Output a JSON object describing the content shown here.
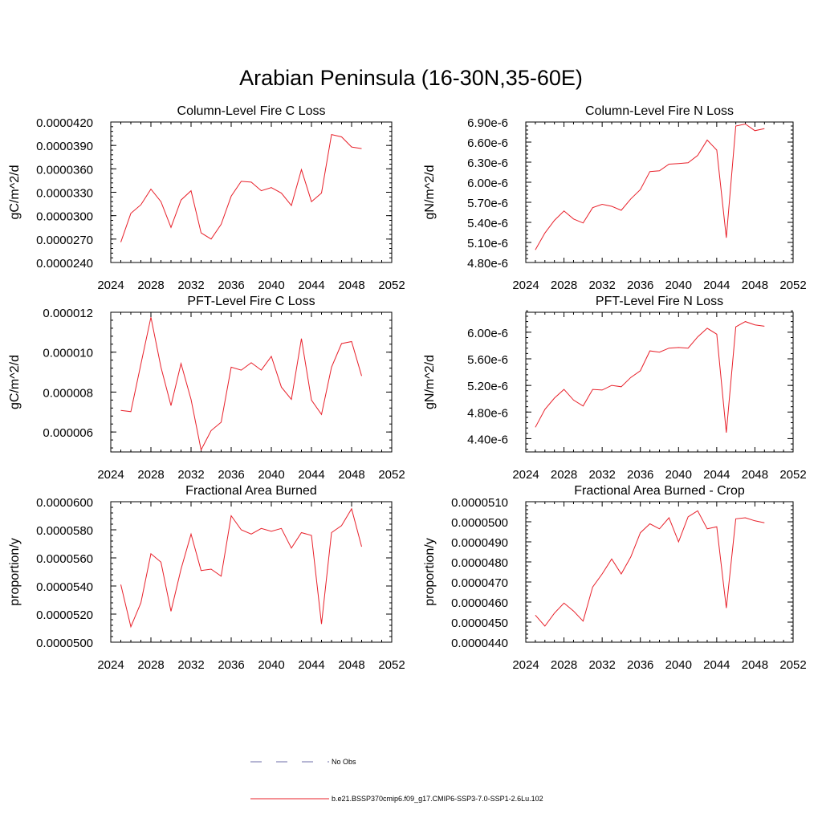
{
  "figure": {
    "title": "Arabian Peninsula (16-30N,35-60E)"
  },
  "legend": {
    "items": [
      {
        "label": "No Obs",
        "color": "#6e6ea8",
        "style": "dashed"
      },
      {
        "label": "b.e21.BSSP370cmip6.f09_g17.CMIP6-SSP3-7.0-SSP1-2.6Lu.102",
        "color": "#e8202a",
        "style": "solid"
      }
    ]
  },
  "chart_data": [
    {
      "type": "line",
      "title": "Column-Level Fire C Loss",
      "ylabel": "gC/m^2/d",
      "xlim": [
        2024,
        2052
      ],
      "xticks": [
        2024,
        2028,
        2032,
        2036,
        2040,
        2044,
        2048,
        2052
      ],
      "ylim": [
        2.4e-05,
        4.2e-05
      ],
      "yticks": [
        2.4e-05,
        2.7e-05,
        3e-05,
        3.3e-05,
        3.6e-05,
        3.9e-05,
        4.2e-05
      ],
      "ytick_labels": [
        "0.0000240",
        "0.0000270",
        "0.0000300",
        "0.0000330",
        "0.0000360",
        "0.0000390",
        "0.0000420"
      ],
      "x": [
        2025,
        2026,
        2027,
        2028,
        2029,
        2030,
        2031,
        2032,
        2033,
        2034,
        2035,
        2036,
        2037,
        2038,
        2039,
        2040,
        2041,
        2042,
        2043,
        2044,
        2045,
        2046,
        2047,
        2048,
        2049
      ],
      "series": [
        {
          "color": "#e8202a",
          "values": [
            2.66e-05,
            3.03e-05,
            3.14e-05,
            3.34e-05,
            3.18e-05,
            2.85e-05,
            3.2e-05,
            3.32e-05,
            2.78e-05,
            2.7e-05,
            2.89e-05,
            3.25e-05,
            3.44e-05,
            3.43e-05,
            3.32e-05,
            3.36e-05,
            3.29e-05,
            3.13e-05,
            3.59e-05,
            3.18e-05,
            3.29e-05,
            4.04e-05,
            4.01e-05,
            3.88e-05,
            3.86e-05
          ]
        }
      ]
    },
    {
      "type": "line",
      "title": "Column-Level Fire N Loss",
      "ylabel": "gN/m^2/d",
      "xlim": [
        2024,
        2052
      ],
      "xticks": [
        2024,
        2028,
        2032,
        2036,
        2040,
        2044,
        2048,
        2052
      ],
      "ylim": [
        4.8e-06,
        6.9e-06
      ],
      "yticks": [
        4.8e-06,
        5.1e-06,
        5.4e-06,
        5.7e-06,
        6e-06,
        6.3e-06,
        6.6e-06,
        6.9e-06
      ],
      "ytick_labels": [
        "4.80e-6",
        "5.10e-6",
        "5.40e-6",
        "5.70e-6",
        "6.00e-6",
        "6.30e-6",
        "6.60e-6",
        "6.90e-6"
      ],
      "x": [
        2025,
        2026,
        2027,
        2028,
        2029,
        2030,
        2031,
        2032,
        2033,
        2034,
        2035,
        2036,
        2037,
        2038,
        2039,
        2040,
        2041,
        2042,
        2043,
        2044,
        2045,
        2046,
        2047,
        2048,
        2049
      ],
      "series": [
        {
          "color": "#e8202a",
          "values": [
            4.99e-06,
            5.24e-06,
            5.43e-06,
            5.57e-06,
            5.45e-06,
            5.39e-06,
            5.62e-06,
            5.67e-06,
            5.64e-06,
            5.58e-06,
            5.75e-06,
            5.89e-06,
            6.16e-06,
            6.17e-06,
            6.27e-06,
            6.28e-06,
            6.29e-06,
            6.4e-06,
            6.63e-06,
            6.48e-06,
            5.17e-06,
            6.84e-06,
            6.87e-06,
            6.77e-06,
            6.8e-06
          ]
        }
      ]
    },
    {
      "type": "line",
      "title": "PFT-Level Fire C Loss",
      "ylabel": "gC/m^2/d",
      "xlim": [
        2024,
        2052
      ],
      "xticks": [
        2024,
        2028,
        2032,
        2036,
        2040,
        2044,
        2048,
        2052
      ],
      "ylim": [
        5e-06,
        1.2e-05
      ],
      "yticks": [
        6e-06,
        8e-06,
        1e-05,
        1.2e-05
      ],
      "ytick_labels": [
        "0.000006",
        "0.000008",
        "0.000010",
        "0.000012"
      ],
      "x": [
        2025,
        2026,
        2027,
        2028,
        2029,
        2030,
        2031,
        2032,
        2033,
        2034,
        2035,
        2036,
        2037,
        2038,
        2039,
        2040,
        2041,
        2042,
        2043,
        2044,
        2045,
        2046,
        2047,
        2048,
        2049
      ],
      "series": [
        {
          "color": "#e8202a",
          "values": [
            7.08e-06,
            7.02e-06,
            9.4e-06,
            1.175e-05,
            9.25e-06,
            7.32e-06,
            9.43e-06,
            7.63e-06,
            5.1e-06,
            6.07e-06,
            6.49e-06,
            9.25e-06,
            9.1e-06,
            9.47e-06,
            9.1e-06,
            9.79e-06,
            8.25e-06,
            7.63e-06,
            1.068e-05,
            7.6e-06,
            6.88e-06,
            9.25e-06,
            1.043e-05,
            1.053e-05,
            8.81e-06
          ]
        }
      ]
    },
    {
      "type": "line",
      "title": "PFT-Level Fire N Loss",
      "ylabel": "gN/m^2/d",
      "xlim": [
        2024,
        2052
      ],
      "xticks": [
        2024,
        2028,
        2032,
        2036,
        2040,
        2044,
        2048,
        2052
      ],
      "ylim": [
        4.2e-06,
        6.3e-06
      ],
      "yticks": [
        4.4e-06,
        4.8e-06,
        5.2e-06,
        5.6e-06,
        6e-06
      ],
      "ytick_labels": [
        "4.40e-6",
        "4.80e-6",
        "5.20e-6",
        "5.60e-6",
        "6.00e-6"
      ],
      "x": [
        2025,
        2026,
        2027,
        2028,
        2029,
        2030,
        2031,
        2032,
        2033,
        2034,
        2035,
        2036,
        2037,
        2038,
        2039,
        2040,
        2041,
        2042,
        2043,
        2044,
        2045,
        2046,
        2047,
        2048,
        2049
      ],
      "series": [
        {
          "color": "#e8202a",
          "values": [
            4.57e-06,
            4.84e-06,
            5.01e-06,
            5.14e-06,
            4.98e-06,
            4.89e-06,
            5.14e-06,
            5.13e-06,
            5.2e-06,
            5.18e-06,
            5.32e-06,
            5.42e-06,
            5.72e-06,
            5.7e-06,
            5.76e-06,
            5.77e-06,
            5.76e-06,
            5.93e-06,
            6.06e-06,
            5.97e-06,
            4.49e-06,
            6.08e-06,
            6.16e-06,
            6.11e-06,
            6.09e-06
          ]
        }
      ]
    },
    {
      "type": "line",
      "title": "Fractional Area Burned",
      "ylabel": "proportion/y",
      "xlim": [
        2024,
        2052
      ],
      "xticks": [
        2024,
        2028,
        2032,
        2036,
        2040,
        2044,
        2048,
        2052
      ],
      "ylim": [
        5e-05,
        6e-05
      ],
      "yticks": [
        5e-05,
        5.2e-05,
        5.4e-05,
        5.6e-05,
        5.8e-05,
        6e-05
      ],
      "ytick_labels": [
        "0.0000500",
        "0.0000520",
        "0.0000540",
        "0.0000560",
        "0.0000580",
        "0.0000600"
      ],
      "x": [
        2025,
        2026,
        2027,
        2028,
        2029,
        2030,
        2031,
        2032,
        2033,
        2034,
        2035,
        2036,
        2037,
        2038,
        2039,
        2040,
        2041,
        2042,
        2043,
        2044,
        2045,
        2046,
        2047,
        2048,
        2049
      ],
      "series": [
        {
          "color": "#e8202a",
          "values": [
            5.41e-05,
            5.11e-05,
            5.28e-05,
            5.63e-05,
            5.57e-05,
            5.22e-05,
            5.52e-05,
            5.77e-05,
            5.51e-05,
            5.52e-05,
            5.47e-05,
            5.9e-05,
            5.8e-05,
            5.77e-05,
            5.81e-05,
            5.79e-05,
            5.81e-05,
            5.67e-05,
            5.78e-05,
            5.76e-05,
            5.13e-05,
            5.78e-05,
            5.83e-05,
            5.95e-05,
            5.68e-05
          ]
        }
      ]
    },
    {
      "type": "line",
      "title": "Fractional Area Burned - Crop",
      "ylabel": "proportion/y",
      "xlim": [
        2024,
        2052
      ],
      "xticks": [
        2024,
        2028,
        2032,
        2036,
        2040,
        2044,
        2048,
        2052
      ],
      "ylim": [
        4.4e-05,
        5.1e-05
      ],
      "yticks": [
        4.4e-05,
        4.5e-05,
        4.6e-05,
        4.7e-05,
        4.8e-05,
        4.9e-05,
        5e-05,
        5.1e-05
      ],
      "ytick_labels": [
        "0.0000440",
        "0.0000450",
        "0.0000460",
        "0.0000470",
        "0.0000480",
        "0.0000490",
        "0.0000500",
        "0.0000510"
      ],
      "x": [
        2025,
        2026,
        2027,
        2028,
        2029,
        2030,
        2031,
        2032,
        2033,
        2034,
        2035,
        2036,
        2037,
        2038,
        2039,
        2040,
        2041,
        2042,
        2043,
        2044,
        2045,
        2046,
        2047,
        2048,
        2049
      ],
      "series": [
        {
          "color": "#e8202a",
          "values": [
            4.535e-05,
            4.48e-05,
            4.545e-05,
            4.595e-05,
            4.555e-05,
            4.505e-05,
            4.675e-05,
            4.74e-05,
            4.815e-05,
            4.74e-05,
            4.825e-05,
            4.945e-05,
            4.99e-05,
            4.965e-05,
            5.02e-05,
            4.9e-05,
            5.025e-05,
            5.055e-05,
            4.965e-05,
            4.975e-05,
            4.57e-05,
            5.015e-05,
            5.02e-05,
            5.005e-05,
            4.995e-05
          ]
        }
      ]
    }
  ]
}
